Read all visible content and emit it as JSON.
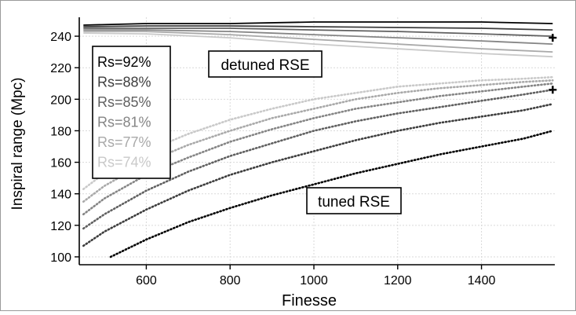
{
  "chart_data": {
    "type": "line",
    "title": "",
    "xlabel": "Finesse",
    "ylabel": "Inspiral range (Mpc)",
    "xlim": [
      440,
      1575
    ],
    "ylim": [
      95,
      252
    ],
    "xticks": [
      600,
      800,
      1000,
      1200,
      1400
    ],
    "yticks": [
      100,
      120,
      140,
      160,
      180,
      200,
      220,
      240
    ],
    "grid": true,
    "legend_position": "upper-left",
    "legend_entries": [
      "Rs=92%",
      "Rs=88%",
      "Rs=85%",
      "Rs=81%",
      "Rs=77%",
      "Rs=74%"
    ],
    "annotations": [
      "detuned RSE",
      "tuned RSE"
    ],
    "series_colors": [
      "#000000",
      "#3d3d3d",
      "#606060",
      "#858585",
      "#a9a9a9",
      "#c9c9c9"
    ],
    "series": [
      {
        "name": "Rs=92%",
        "group": "detuned RSE",
        "style": "solid",
        "x": [
          450,
          600,
          800,
          1000,
          1200,
          1400,
          1570
        ],
        "y": [
          247,
          248,
          248,
          249,
          249,
          249,
          248
        ]
      },
      {
        "name": "Rs=88%",
        "group": "detuned RSE",
        "style": "solid",
        "x": [
          450,
          600,
          800,
          1000,
          1200,
          1400,
          1570
        ],
        "y": [
          246,
          246.5,
          246.5,
          246,
          245.5,
          245,
          244
        ]
      },
      {
        "name": "Rs=85%",
        "group": "detuned RSE",
        "style": "solid",
        "x": [
          450,
          600,
          800,
          1000,
          1200,
          1400,
          1570
        ],
        "y": [
          245,
          245,
          245,
          244,
          243,
          241.5,
          240
        ]
      },
      {
        "name": "Rs=81%",
        "group": "detuned RSE",
        "style": "solid",
        "x": [
          450,
          600,
          800,
          1000,
          1200,
          1400,
          1570
        ],
        "y": [
          244,
          244,
          243,
          241,
          239,
          237,
          235
        ]
      },
      {
        "name": "Rs=77%",
        "group": "detuned RSE",
        "style": "solid",
        "x": [
          450,
          600,
          800,
          1000,
          1200,
          1400,
          1570
        ],
        "y": [
          243,
          243,
          241,
          238,
          235,
          232,
          230
        ]
      },
      {
        "name": "Rs=74%",
        "group": "detuned RSE",
        "style": "solid",
        "x": [
          450,
          600,
          800,
          1000,
          1200,
          1400,
          1570
        ],
        "y": [
          242,
          241.5,
          239,
          235,
          232,
          229,
          227
        ]
      },
      {
        "name": "Rs=92%",
        "group": "tuned RSE",
        "style": "dotted",
        "x": [
          515,
          600,
          700,
          800,
          900,
          1000,
          1100,
          1200,
          1300,
          1400,
          1500,
          1570
        ],
        "y": [
          100,
          111,
          122,
          131,
          139,
          146,
          153,
          159,
          165,
          170,
          175,
          180
        ]
      },
      {
        "name": "Rs=88%",
        "group": "tuned RSE",
        "style": "dotted",
        "x": [
          450,
          500,
          600,
          700,
          800,
          900,
          1000,
          1100,
          1200,
          1300,
          1400,
          1500,
          1570
        ],
        "y": [
          107,
          116,
          130,
          142,
          152,
          160,
          167,
          174,
          180,
          185,
          189,
          193,
          197
        ]
      },
      {
        "name": "Rs=85%",
        "group": "tuned RSE",
        "style": "dotted",
        "x": [
          450,
          500,
          600,
          700,
          800,
          900,
          1000,
          1100,
          1200,
          1300,
          1400,
          1500,
          1570
        ],
        "y": [
          118,
          127,
          142,
          154,
          164,
          172,
          180,
          186,
          191,
          195,
          199,
          203,
          206
        ]
      },
      {
        "name": "Rs=81%",
        "group": "tuned RSE",
        "style": "dotted",
        "x": [
          450,
          500,
          600,
          700,
          800,
          900,
          1000,
          1100,
          1200,
          1300,
          1400,
          1500,
          1570
        ],
        "y": [
          127,
          137,
          152,
          163,
          173,
          181,
          188,
          194,
          198,
          202,
          205,
          208,
          210
        ]
      },
      {
        "name": "Rs=77%",
        "group": "tuned RSE",
        "style": "dotted",
        "x": [
          450,
          500,
          600,
          700,
          800,
          900,
          1000,
          1100,
          1200,
          1300,
          1400,
          1500,
          1570
        ],
        "y": [
          135,
          145,
          160,
          171,
          180,
          188,
          194,
          200,
          204,
          207,
          209,
          211,
          212
        ]
      },
      {
        "name": "Rs=74%",
        "group": "tuned RSE",
        "style": "dotted",
        "x": [
          450,
          500,
          600,
          700,
          800,
          900,
          1000,
          1100,
          1200,
          1300,
          1400,
          1500,
          1570
        ],
        "y": [
          143,
          153,
          167,
          178,
          187,
          194,
          200,
          204,
          208,
          210,
          212,
          213,
          214
        ]
      }
    ],
    "markers": [
      {
        "symbol": "+",
        "x": 1570,
        "y": 239
      },
      {
        "symbol": "+",
        "x": 1570,
        "y": 206
      }
    ]
  }
}
